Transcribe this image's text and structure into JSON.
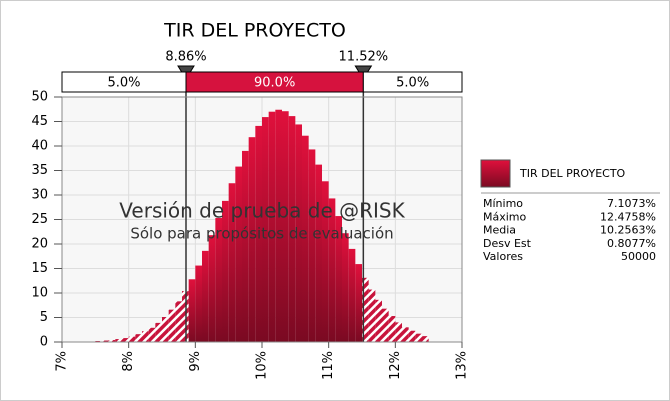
{
  "chart_data": {
    "type": "histogram",
    "title": "TIR DEL PROYECTO",
    "series": [
      {
        "name": "TIR DEL PROYECTO",
        "color": "#c8143c",
        "values": [
          0.0,
          0.0,
          0.1,
          0.1,
          0.2,
          0.3,
          0.4,
          0.6,
          0.8,
          1.1,
          1.6,
          2.2,
          2.9,
          3.9,
          5.1,
          6.6,
          8.3,
          10.4,
          12.8,
          15.6,
          18.6,
          21.8,
          25.3,
          28.8,
          32.4,
          35.8,
          39.0,
          41.8,
          44.1,
          45.9,
          47.0,
          47.4,
          47.1,
          46.1,
          44.4,
          42.1,
          39.3,
          36.2,
          32.8,
          29.3,
          25.7,
          22.2,
          19.0,
          15.9,
          13.1,
          10.7,
          8.6,
          6.8,
          5.3,
          4.0,
          3.0,
          2.3,
          1.7,
          1.2
        ]
      }
    ],
    "bins": [
      7.1,
      7.2,
      7.3,
      7.4,
      7.5,
      7.6,
      7.7,
      7.8,
      7.9,
      8.0,
      8.1,
      8.2,
      8.3,
      8.4,
      8.5,
      8.6,
      8.7,
      8.8,
      8.9,
      9.0,
      9.1,
      9.2,
      9.3,
      9.4,
      9.5,
      9.6,
      9.7,
      9.8,
      9.9,
      10.0,
      10.1,
      10.2,
      10.3,
      10.4,
      10.5,
      10.6,
      10.7,
      10.8,
      10.9,
      11.0,
      11.1,
      11.2,
      11.3,
      11.4,
      11.5,
      11.6,
      11.7,
      11.8,
      11.9,
      12.0,
      12.1,
      12.2,
      12.3,
      12.4,
      12.5
    ],
    "xlim": [
      7,
      13
    ],
    "xticks": [
      {
        "value": 7,
        "label": "7%"
      },
      {
        "value": 8,
        "label": "8%"
      },
      {
        "value": 9,
        "label": "9%"
      },
      {
        "value": 10,
        "label": "10%"
      },
      {
        "value": 11,
        "label": "11%"
      },
      {
        "value": 12,
        "label": "12%"
      },
      {
        "value": 13,
        "label": "13%"
      }
    ],
    "ylim": [
      0,
      50
    ],
    "yticks": [
      0,
      5,
      10,
      15,
      20,
      25,
      30,
      35,
      40,
      45,
      50
    ],
    "grid": true,
    "delimiters": [
      {
        "value": 8.86,
        "label": "8.86%"
      },
      {
        "value": 11.52,
        "label": "11.52%"
      }
    ],
    "regions": {
      "values": [
        5,
        90,
        5
      ],
      "value_labels": [
        "5.0%",
        "90.0%",
        "5.0%"
      ]
    },
    "annotations": [
      "Versión de prueba de @RISK",
      "Sólo para propósitos de evaluación"
    ],
    "stats": [
      {
        "label": "Mínimo",
        "value": "7.1073%"
      },
      {
        "label": "Máximo",
        "value": "12.4758%"
      },
      {
        "label": "Media",
        "value": "10.2563%"
      },
      {
        "label": "Desv Est",
        "value": "0.8077%"
      },
      {
        "label": "Valores",
        "value": "50000"
      }
    ]
  }
}
